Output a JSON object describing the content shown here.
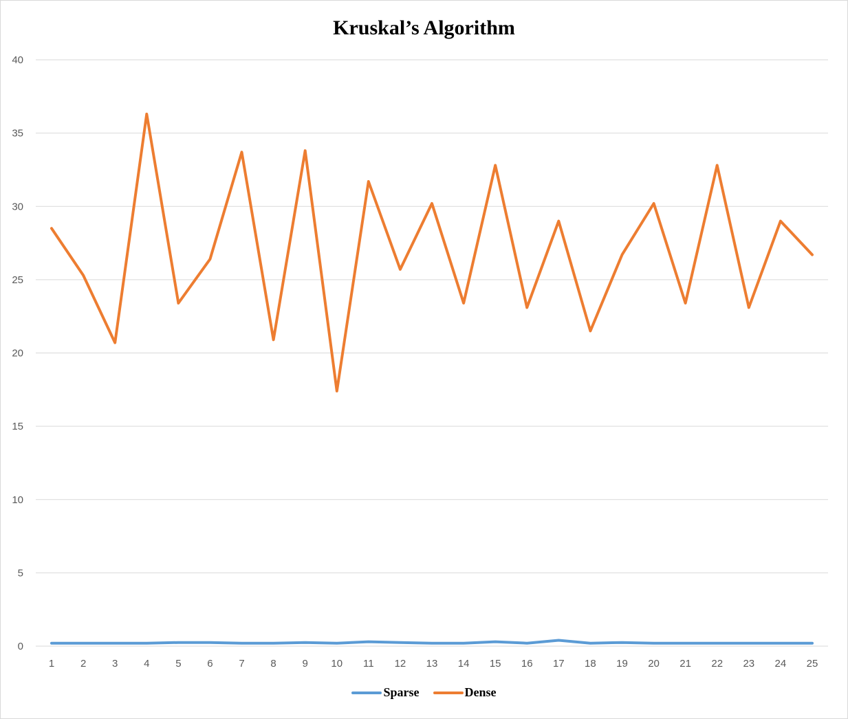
{
  "chart_data": {
    "type": "line",
    "title": "Kruskal’s Algorithm",
    "xlabel": "",
    "ylabel": "",
    "categories": [
      "1",
      "2",
      "3",
      "4",
      "5",
      "6",
      "7",
      "8",
      "9",
      "10",
      "11",
      "12",
      "13",
      "14",
      "15",
      "16",
      "17",
      "18",
      "19",
      "20",
      "21",
      "22",
      "23",
      "24",
      "25"
    ],
    "ylim": [
      0,
      40
    ],
    "yticks": [
      "0",
      "5",
      "10",
      "15",
      "20",
      "25",
      "30",
      "35",
      "40"
    ],
    "grid": true,
    "legend_position": "bottom",
    "series": [
      {
        "name": "Sparse",
        "color": "#5b9bd5",
        "values": [
          0.2,
          0.2,
          0.2,
          0.2,
          0.25,
          0.25,
          0.2,
          0.2,
          0.25,
          0.2,
          0.3,
          0.25,
          0.2,
          0.2,
          0.3,
          0.2,
          0.4,
          0.2,
          0.25,
          0.2,
          0.2,
          0.2,
          0.2,
          0.2,
          0.2
        ]
      },
      {
        "name": "Dense",
        "color": "#ed7d31",
        "values": [
          28.5,
          25.3,
          20.7,
          36.3,
          23.4,
          26.4,
          33.7,
          20.9,
          33.8,
          17.4,
          31.7,
          25.7,
          30.2,
          23.4,
          32.8,
          23.1,
          29.0,
          21.5,
          26.7,
          30.2,
          23.4,
          32.8,
          23.1,
          29.0,
          26.7
        ]
      }
    ]
  }
}
